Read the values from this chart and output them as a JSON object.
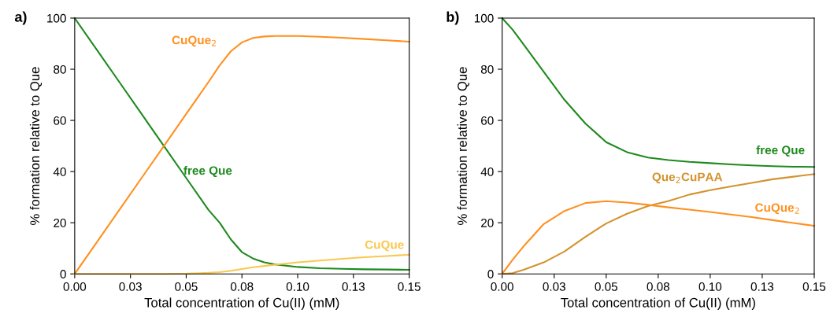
{
  "chart_data": [
    {
      "type": "line",
      "title": "a)",
      "xlabel": "Total concentration of Cu(II) (mM)",
      "ylabel": "% formation relative to Que",
      "xlim": [
        0,
        0.15
      ],
      "ylim": [
        0,
        100
      ],
      "xticks": [
        {
          "value": 0,
          "label": "0.00"
        },
        {
          "value": 0.025,
          "label": "0.03"
        },
        {
          "value": 0.05,
          "label": "0.05"
        },
        {
          "value": 0.075,
          "label": "0.08"
        },
        {
          "value": 0.1,
          "label": "0.10"
        },
        {
          "value": 0.125,
          "label": "0.13"
        },
        {
          "value": 0.15,
          "label": "0.15"
        }
      ],
      "yticks": [
        0,
        20,
        40,
        60,
        80,
        100
      ],
      "grid": false,
      "legend": false,
      "marker": "none",
      "line_style": "solid",
      "x": [
        0,
        0.01,
        0.02,
        0.03,
        0.04,
        0.05,
        0.06,
        0.065,
        0.07,
        0.075,
        0.08,
        0.085,
        0.09,
        0.1,
        0.11,
        0.12,
        0.13,
        0.14,
        0.15
      ],
      "series": [
        {
          "name": "free Que",
          "color": "#1e8a1e",
          "values": [
            100,
            87.5,
            75,
            62.5,
            50,
            37.5,
            25,
            20,
            13.5,
            8.5,
            6,
            4.5,
            3.7,
            2.7,
            2.2,
            2,
            1.8,
            1.7,
            1.6
          ]
        },
        {
          "name": "CuQue$_{2}$",
          "color": "#ff9020",
          "values": [
            0,
            12.5,
            25,
            37.5,
            50,
            62.5,
            75,
            81.5,
            87,
            90.5,
            92.2,
            92.8,
            93,
            93,
            92.7,
            92.3,
            91.8,
            91.3,
            90.8
          ]
        },
        {
          "name": "CuQue",
          "color": "#f8c850",
          "values": [
            0,
            0,
            0,
            0,
            0,
            0.1,
            0.4,
            0.7,
            1.2,
            1.9,
            2.6,
            3.1,
            3.6,
            4.5,
            5.2,
            5.9,
            6.5,
            7,
            7.5
          ]
        }
      ]
    },
    {
      "type": "line",
      "title": "b)",
      "xlabel": "Total concentration of Cu(II) (mM)",
      "ylabel": "% formation relative to Que",
      "xlim": [
        0,
        0.15
      ],
      "ylim": [
        0,
        100
      ],
      "xticks": [
        {
          "value": 0,
          "label": "0.00"
        },
        {
          "value": 0.025,
          "label": "0.03"
        },
        {
          "value": 0.05,
          "label": "0.05"
        },
        {
          "value": 0.075,
          "label": "0.08"
        },
        {
          "value": 0.1,
          "label": "0.10"
        },
        {
          "value": 0.125,
          "label": "0.13"
        },
        {
          "value": 0.15,
          "label": "0.15"
        }
      ],
      "yticks": [
        0,
        20,
        40,
        60,
        80,
        100
      ],
      "grid": false,
      "legend": false,
      "marker": "none",
      "line_style": "solid",
      "x": [
        0,
        0.005,
        0.01,
        0.02,
        0.03,
        0.04,
        0.05,
        0.06,
        0.07,
        0.08,
        0.09,
        0.1,
        0.11,
        0.12,
        0.13,
        0.14,
        0.15
      ],
      "series": [
        {
          "name": "free Que",
          "color": "#1e8a1e",
          "values": [
            100,
            95.5,
            90,
            79,
            68,
            58.8,
            51.5,
            47.6,
            45.5,
            44.5,
            43.8,
            43.3,
            42.8,
            42.4,
            42.1,
            41.9,
            41.8
          ]
        },
        {
          "name": "Que$_{2}$CuPAA",
          "color": "#d4922e",
          "values": [
            0,
            0.3,
            1.5,
            4.5,
            8.8,
            14.5,
            19.7,
            23.5,
            26.5,
            28.5,
            31,
            32.7,
            34.2,
            35.6,
            37,
            38,
            39
          ]
        },
        {
          "name": "CuQue$_{2}$",
          "color": "#ff9020",
          "values": [
            0,
            5.5,
            10.5,
            19.5,
            24.6,
            27.7,
            28.4,
            27.9,
            27,
            26,
            25.1,
            24.2,
            23.2,
            22.2,
            21,
            19.9,
            18.8
          ]
        }
      ]
    }
  ]
}
